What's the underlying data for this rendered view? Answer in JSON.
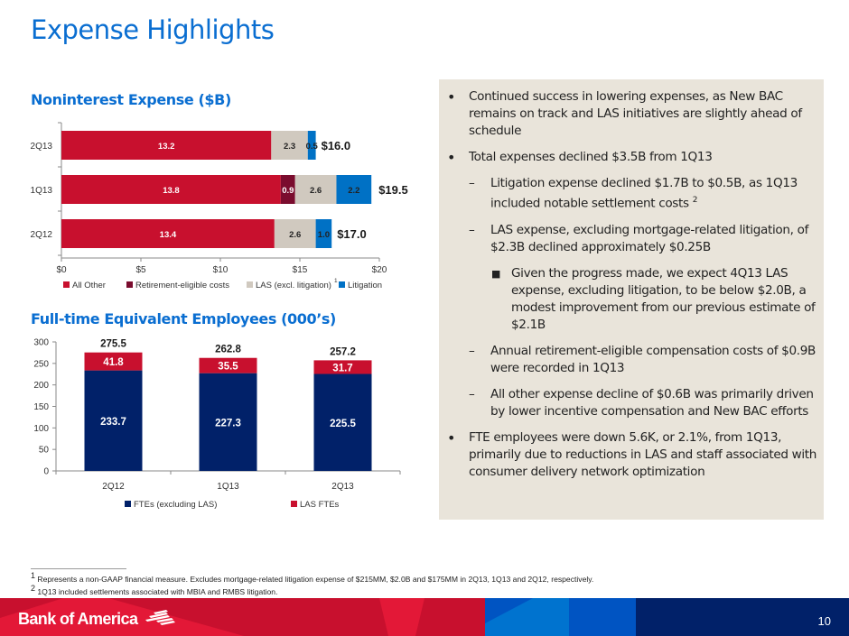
{
  "title": "Expense Highlights",
  "colors": {
    "title_blue": "#0a6ed1",
    "all_other": "#c8102e",
    "retirement": "#7a0c2e",
    "las": "#d0c9bf",
    "litigation": "#0071c5",
    "fte_non_las": "#012169",
    "fte_las": "#c8102e",
    "panel_bg": "#e9e4da"
  },
  "chart_data": [
    {
      "type": "bar",
      "orientation": "horizontal",
      "stacked": true,
      "title": "Noninterest Expense ($B)",
      "categories": [
        "2Q13",
        "1Q13",
        "2Q12"
      ],
      "series": [
        {
          "name": "All Other",
          "values": [
            13.2,
            13.8,
            13.4
          ]
        },
        {
          "name": "Retirement-eligible costs",
          "values": [
            0,
            0.9,
            0
          ]
        },
        {
          "name": "LAS (excl. litigation)",
          "name_superscript": "1",
          "values": [
            2.3,
            2.6,
            2.6
          ]
        },
        {
          "name": "Litigation",
          "values": [
            0.5,
            2.2,
            1.0
          ]
        }
      ],
      "segment_labels": [
        [
          "13.2",
          "",
          "2.3",
          "0.5"
        ],
        [
          "13.8",
          "0.9",
          "2.6",
          "2.2"
        ],
        [
          "13.4",
          "",
          "2.6",
          "1.0"
        ]
      ],
      "totals": [
        "$16.0",
        "$19.5",
        "$17.0"
      ],
      "xlim": [
        0,
        20
      ],
      "xticks": [
        0,
        5,
        10,
        15,
        20
      ],
      "xtick_labels": [
        "$0",
        "$5",
        "$10",
        "$15",
        "$20"
      ],
      "xlabel": "",
      "ylabel": "",
      "grid": false,
      "legend": "bottom"
    },
    {
      "type": "bar",
      "orientation": "vertical",
      "stacked": true,
      "title": "Full-time Equivalent Employees (000’s)",
      "categories": [
        "2Q12",
        "1Q13",
        "2Q13"
      ],
      "series": [
        {
          "name": "FTEs (excluding LAS)",
          "values": [
            233.7,
            227.3,
            225.5
          ]
        },
        {
          "name": "LAS FTEs",
          "values": [
            41.8,
            35.5,
            31.7
          ]
        }
      ],
      "totals": [
        "275.5",
        "262.8",
        "257.2"
      ],
      "ylim": [
        0,
        300
      ],
      "yticks": [
        0,
        50,
        100,
        150,
        200,
        250,
        300
      ],
      "xlabel": "",
      "ylabel": "",
      "grid": false,
      "legend": "bottom"
    }
  ],
  "bullets": [
    {
      "level": 1,
      "marker": "•",
      "text": "Continued success in lowering expenses, as New BAC remains on track and LAS initiatives are slightly ahead of schedule"
    },
    {
      "level": 1,
      "marker": "•",
      "text": "Total expenses declined $3.5B from 1Q13"
    },
    {
      "level": 2,
      "marker": "–",
      "text": "Litigation expense declined $1.7B to $0.5B, as 1Q13 included notable settlement costs",
      "sup": "2"
    },
    {
      "level": 2,
      "marker": "–",
      "text": "LAS expense, excluding mortgage-related litigation, of $2.3B declined approximately $0.25B"
    },
    {
      "level": 3,
      "marker": "■",
      "text": "Given the progress made, we expect 4Q13 LAS expense, excluding litigation, to be below $2.0B, a modest improvement from our previous estimate of $2.1B"
    },
    {
      "level": 2,
      "marker": "–",
      "text": "Annual retirement-eligible compensation costs of $0.9B were recorded in 1Q13"
    },
    {
      "level": 2,
      "marker": "–",
      "text": "All other expense decline of $0.6B was primarily driven by lower incentive compensation and New BAC efforts"
    },
    {
      "level": 1,
      "marker": "•",
      "text": "FTE employees were down 5.6K, or 2.1%, from 1Q13, primarily due to reductions in LAS and staff associated with consumer delivery network optimization"
    }
  ],
  "footnotes": [
    {
      "sup": "1",
      "text": "Represents a non-GAAP financial measure. Excludes mortgage-related litigation expense of $215MM, $2.0B and $175MM in 2Q13, 1Q13 and 2Q12, respectively."
    },
    {
      "sup": "2",
      "text": "1Q13 included settlements associated with MBIA and RMBS litigation."
    }
  ],
  "footer": {
    "logo_text": "Bank of America",
    "logo_icon": "flag-icon",
    "page_number": "10"
  }
}
